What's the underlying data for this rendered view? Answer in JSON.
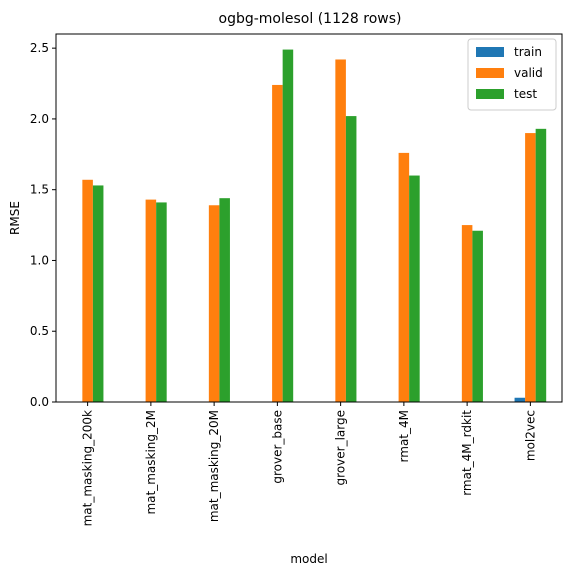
{
  "chart_data": {
    "type": "bar",
    "title": "ogbg-molesol (1128 rows)",
    "xlabel": "model",
    "ylabel": "RMSE",
    "ylim": [
      0,
      2.6
    ],
    "yticks": [
      0.0,
      0.5,
      1.0,
      1.5,
      2.0,
      2.5
    ],
    "ytick_labels": [
      "0.0",
      "0.5",
      "1.0",
      "1.5",
      "2.0",
      "2.5"
    ],
    "grid": false,
    "legend_position": "top-right",
    "categories": [
      "mat_masking_200k",
      "mat_masking_2M",
      "mat_masking_20M",
      "grover_base",
      "grover_large",
      "rmat_4M",
      "rmat_4M_rdkit",
      "mol2vec"
    ],
    "series": [
      {
        "name": "train",
        "color": "#1f77b4",
        "values": [
          0,
          0,
          0,
          0,
          0,
          0,
          0,
          0.03
        ]
      },
      {
        "name": "valid",
        "color": "#ff7f0e",
        "values": [
          1.57,
          1.43,
          1.39,
          2.24,
          2.42,
          1.76,
          1.25,
          1.9
        ]
      },
      {
        "name": "test",
        "color": "#2ca02c",
        "values": [
          1.53,
          1.41,
          1.44,
          2.49,
          2.02,
          1.6,
          1.21,
          1.93
        ]
      }
    ]
  }
}
